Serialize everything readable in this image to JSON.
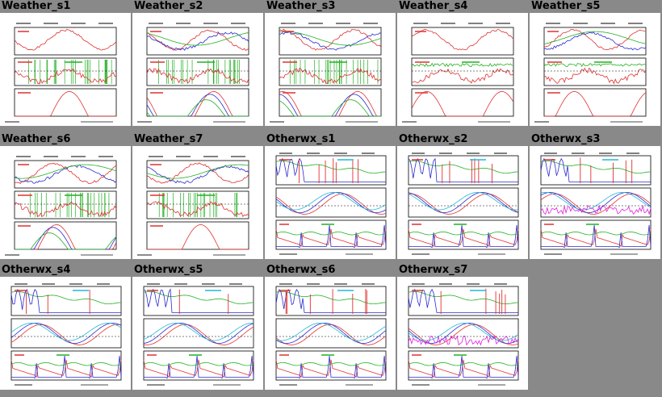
{
  "tiles": [
    {
      "title": "Weather_s1",
      "kind": "weather",
      "seed": 1
    },
    {
      "title": "Weather_s2",
      "kind": "weather",
      "seed": 2
    },
    {
      "title": "Weather_s3",
      "kind": "weather",
      "seed": 3
    },
    {
      "title": "Weather_s4",
      "kind": "weather",
      "seed": 4
    },
    {
      "title": "Weather_s5",
      "kind": "weather",
      "seed": 5
    },
    {
      "title": "Weather_s6",
      "kind": "weather",
      "seed": 6
    },
    {
      "title": "Weather_s7",
      "kind": "weather",
      "seed": 7
    },
    {
      "title": "Otherwx_s1",
      "kind": "otherwx",
      "seed": 8
    },
    {
      "title": "Otherwx_s2",
      "kind": "otherwx",
      "seed": 9
    },
    {
      "title": "Otherwx_s3",
      "kind": "otherwx",
      "seed": 10
    },
    {
      "title": "Otherwx_s4",
      "kind": "otherwx",
      "seed": 11
    },
    {
      "title": "Otherwx_s5",
      "kind": "otherwx",
      "seed": 12
    },
    {
      "title": "Otherwx_s6",
      "kind": "otherwx",
      "seed": 13
    },
    {
      "title": "Otherwx_s7",
      "kind": "otherwx",
      "seed": 14
    }
  ],
  "colors": {
    "background": "#898989",
    "red": "#e03030",
    "blue": "#2a2ad0",
    "green": "#22b022",
    "cyan": "#20b8d8",
    "magenta": "#e020e0",
    "gridline": "#222222"
  }
}
